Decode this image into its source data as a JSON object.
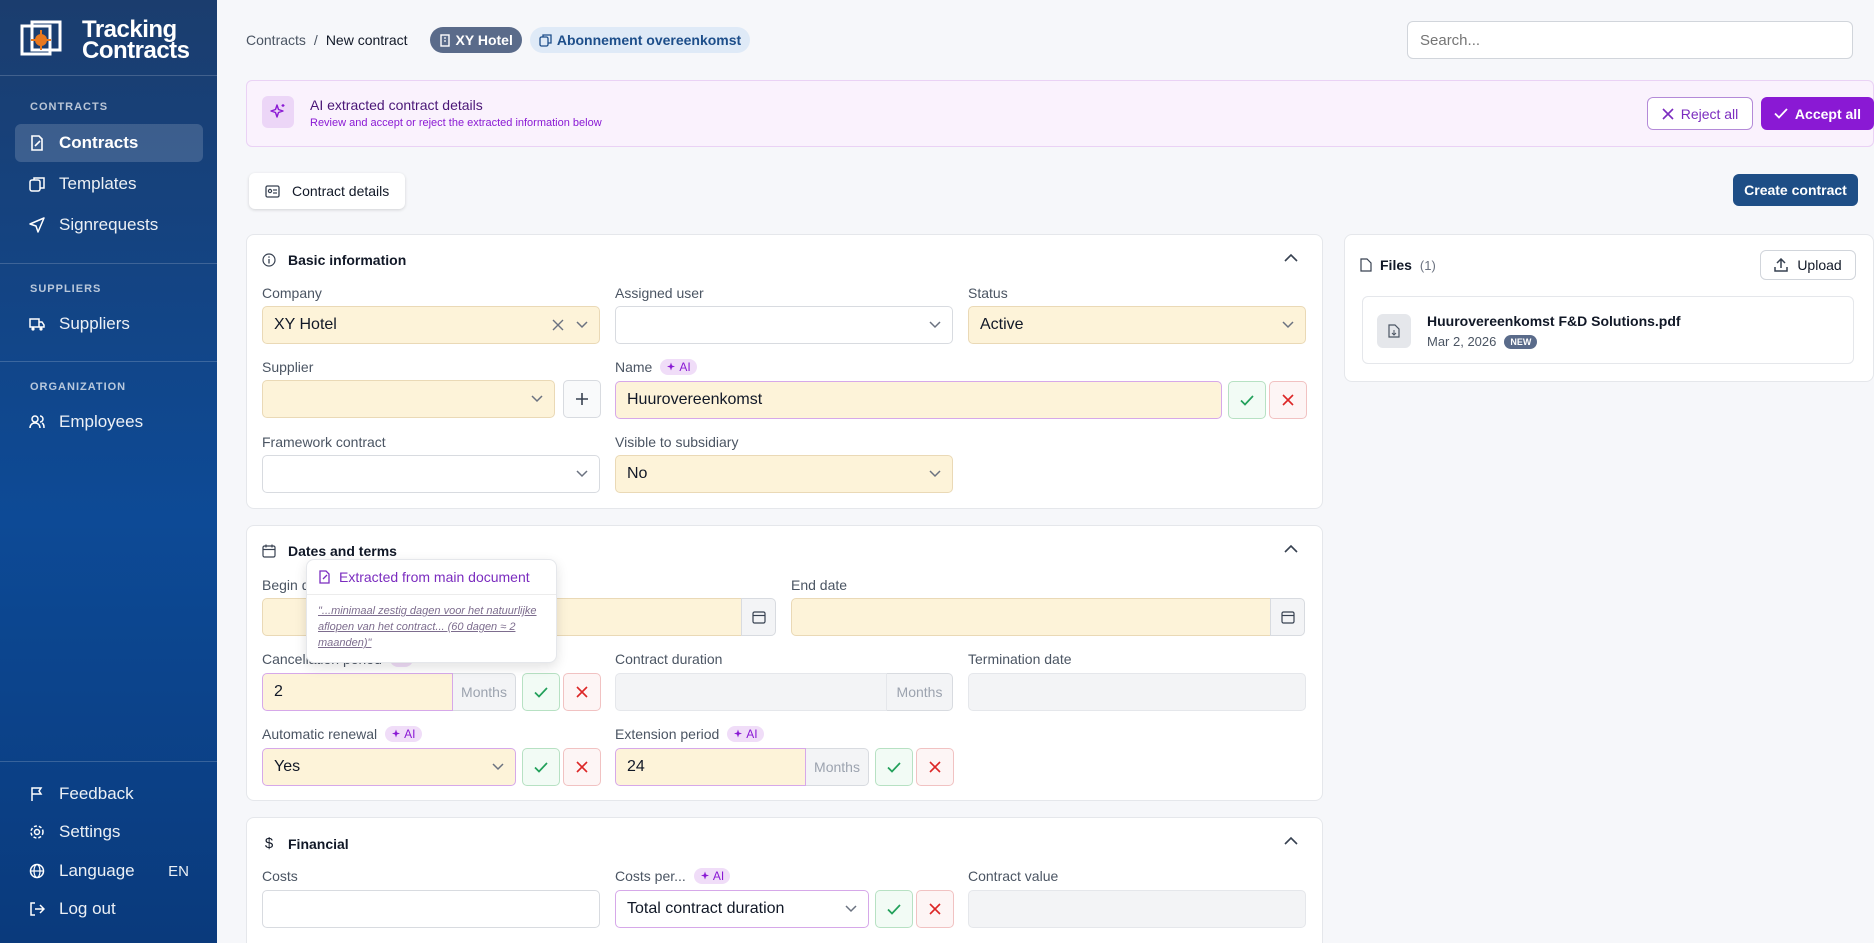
{
  "sidebar": {
    "logo_line1": "Tracking",
    "logo_line2": "Contracts",
    "sections": [
      {
        "heading": "CONTRACTS",
        "items": [
          {
            "label": "Contracts"
          },
          {
            "label": "Templates"
          },
          {
            "label": "Signrequests"
          }
        ]
      },
      {
        "heading": "SUPPLIERS",
        "items": [
          {
            "label": "Suppliers"
          }
        ]
      },
      {
        "heading": "ORGANIZATION",
        "items": [
          {
            "label": "Employees"
          }
        ]
      }
    ],
    "bottom": [
      {
        "label": "Feedback"
      },
      {
        "label": "Settings"
      },
      {
        "label": "Language",
        "value": "EN"
      },
      {
        "label": "Log out"
      }
    ]
  },
  "header": {
    "breadcrumb": [
      "Contracts",
      "New contract"
    ],
    "breadcrumb_sep": "/",
    "company_pill": "XY Hotel",
    "template_pill": "Abonnement overeenkomst",
    "search_placeholder": "Search..."
  },
  "ai_banner": {
    "title": "AI extracted contract details",
    "subtitle": "Review and accept or reject the extracted information below",
    "reject_label": "Reject all",
    "accept_label": "Accept all"
  },
  "tabs": [
    {
      "label": "Contract details"
    }
  ],
  "create_label": "Create contract",
  "ai_tag": "AI",
  "basic": {
    "title": "Basic information",
    "company": {
      "label": "Company",
      "value": "XY Hotel"
    },
    "assigned_user": {
      "label": "Assigned user",
      "value": ""
    },
    "status": {
      "label": "Status",
      "value": "Active"
    },
    "supplier": {
      "label": "Supplier",
      "value": ""
    },
    "name": {
      "label": "Name",
      "value": "Huurovereenkomst"
    },
    "framework": {
      "label": "Framework contract",
      "value": ""
    },
    "visible": {
      "label": "Visible to subsidiary",
      "value": "No"
    }
  },
  "dates": {
    "title": "Dates and terms",
    "begin_date": {
      "label": "Begin date"
    },
    "end_date": {
      "label": "End date"
    },
    "cancellation": {
      "label": "Cancellation period",
      "value": "2",
      "unit": "Months"
    },
    "duration": {
      "label": "Contract duration",
      "unit": "Months"
    },
    "termination": {
      "label": "Termination date"
    },
    "auto_renewal": {
      "label": "Automatic renewal",
      "value": "Yes"
    },
    "extension": {
      "label": "Extension period",
      "value": "24",
      "unit": "Months"
    }
  },
  "popover": {
    "title": "Extracted from main document",
    "quote": "\"...minimaal zestig dagen voor het natuurlijke aflopen van het contract... (60 dagen ≈ 2 maanden)\""
  },
  "financial": {
    "title": "Financial",
    "costs": {
      "label": "Costs",
      "value": ""
    },
    "costs_per": {
      "label": "Costs per...",
      "value": "Total contract duration"
    },
    "contract_value": {
      "label": "Contract value"
    }
  },
  "files": {
    "title": "Files",
    "count": "(1)",
    "upload_label": "Upload",
    "items": [
      {
        "name": "Huurovereenkomst F&D Solutions.pdf",
        "date": "Mar 2, 2026",
        "badge": "NEW"
      }
    ]
  },
  "colors": {
    "accent": "#8a19d4",
    "primary": "#1e4e86",
    "ai_field": "#fdf3d9"
  }
}
